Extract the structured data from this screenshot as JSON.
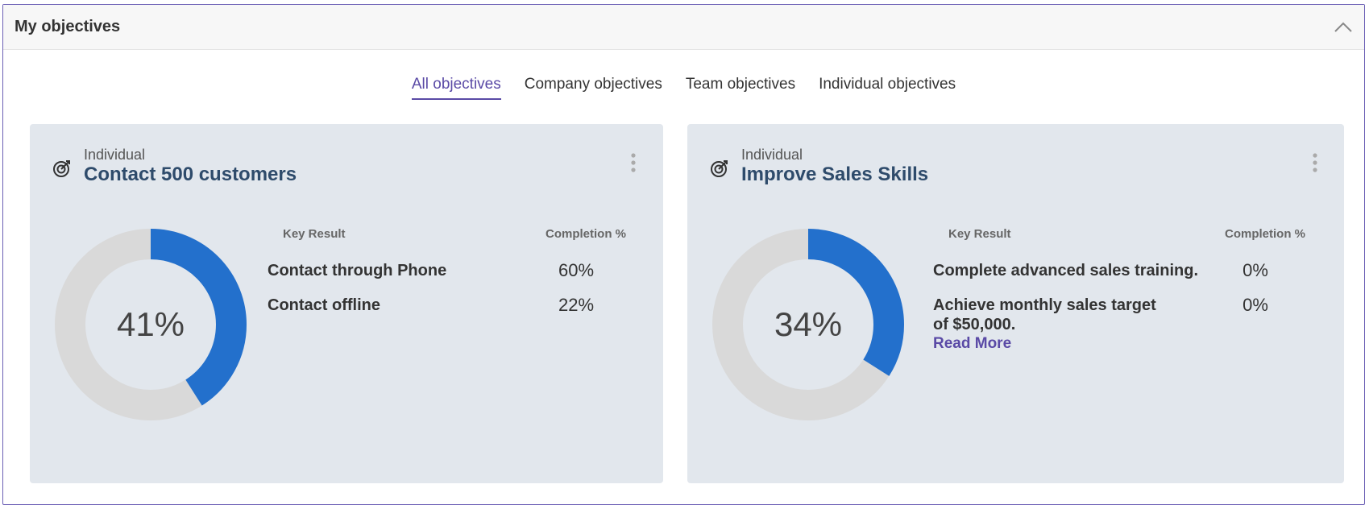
{
  "header": {
    "title": "My objectives",
    "collapse_icon": "chevron-up-icon"
  },
  "tabs": [
    {
      "label": "All objectives",
      "active": true
    },
    {
      "label": "Company objectives",
      "active": false
    },
    {
      "label": "Team objectives",
      "active": false
    },
    {
      "label": "Individual objectives",
      "active": false
    }
  ],
  "colors": {
    "accent": "#5a4aa6",
    "progress": "#2370cc",
    "track": "#d9d9d9",
    "card_bg": "#e2e7ed"
  },
  "cards": [
    {
      "type": "Individual",
      "title": "Contact 500 customers",
      "progress": 41,
      "progress_label": "41%",
      "kr_header": "Key Result",
      "completion_header": "Completion %",
      "key_results": [
        {
          "name": "Contact through Phone",
          "completion": "60%"
        },
        {
          "name": "Contact offline",
          "completion": "22%"
        }
      ]
    },
    {
      "type": "Individual",
      "title": "Improve Sales Skills",
      "progress": 34,
      "progress_label": "34%",
      "kr_header": "Key Result",
      "completion_header": "Completion %",
      "key_results": [
        {
          "name": "Complete advanced sales training.",
          "completion": "0%"
        },
        {
          "name": "Achieve monthly sales target of $50,000.",
          "completion": "0%"
        }
      ],
      "read_more": "Read More"
    }
  ]
}
